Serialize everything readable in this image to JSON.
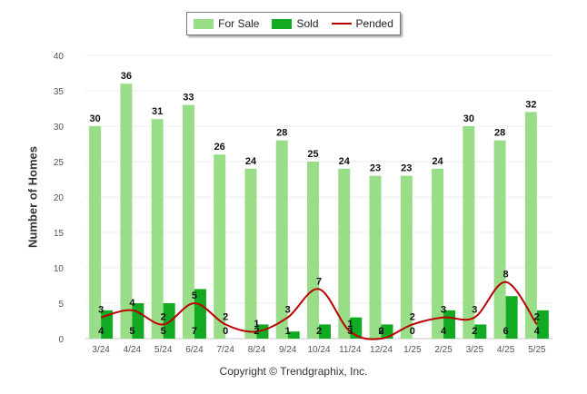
{
  "chart_data": {
    "type": "bar",
    "title": "",
    "xlabel": "",
    "ylabel": "Number of Homes",
    "ylim": [
      0,
      40
    ],
    "yticks": [
      0,
      5,
      10,
      15,
      20,
      25,
      30,
      35,
      40
    ],
    "grid": true,
    "legend": "top-center",
    "categories": [
      "3/24",
      "4/24",
      "5/24",
      "6/24",
      "7/24",
      "8/24",
      "9/24",
      "10/24",
      "11/24",
      "12/24",
      "1/25",
      "2/25",
      "3/25",
      "4/25",
      "5/25"
    ],
    "series": [
      {
        "name": "For Sale",
        "kind": "bar",
        "color": "#99dd88",
        "values": [
          30,
          36,
          31,
          33,
          26,
          24,
          28,
          25,
          24,
          23,
          23,
          24,
          30,
          28,
          32
        ]
      },
      {
        "name": "Sold",
        "kind": "bar",
        "color": "#11aa22",
        "values": [
          4,
          5,
          5,
          7,
          0,
          2,
          1,
          2,
          3,
          2,
          0,
          4,
          2,
          6,
          4
        ]
      },
      {
        "name": "Pended",
        "kind": "line",
        "color": "#bb0000",
        "values": [
          3,
          4,
          2,
          5,
          2,
          1,
          3,
          7,
          1,
          0,
          2,
          3,
          3,
          8,
          2
        ]
      }
    ]
  },
  "footer": {
    "copyright": "Copyright © Trendgraphix, Inc."
  }
}
